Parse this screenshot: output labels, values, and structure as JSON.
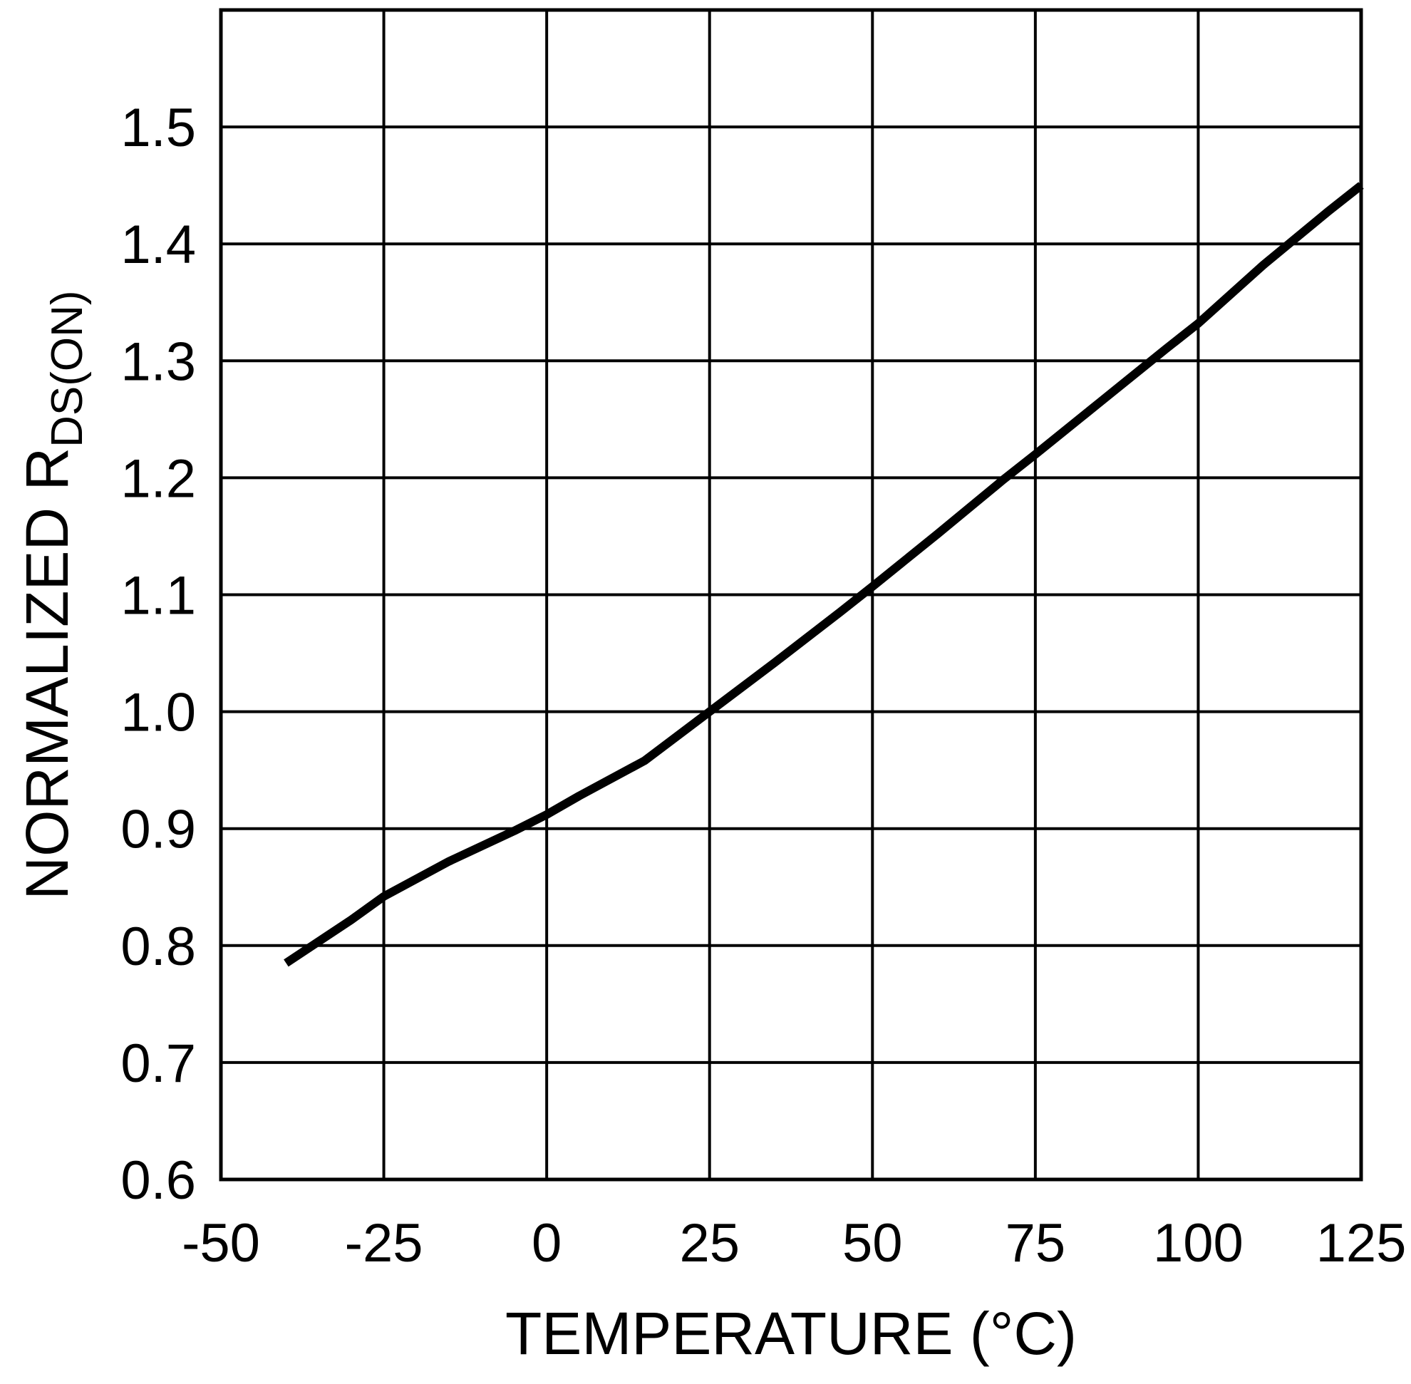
{
  "chart_data": {
    "type": "line",
    "title": "",
    "xlabel": "TEMPERATURE (°C)",
    "ylabel_main": "NORMALIZED R",
    "ylabel_sub": "DS(ON)",
    "xlim": [
      -50,
      125
    ],
    "ylim": [
      0.6,
      1.6
    ],
    "x_ticks": [
      -50,
      -25,
      0,
      25,
      50,
      75,
      100,
      125
    ],
    "y_ticks": [
      0.6,
      0.7,
      0.8,
      0.9,
      1.0,
      1.1,
      1.2,
      1.3,
      1.4,
      1.5
    ],
    "y_gridlines": [
      0.6,
      0.7,
      0.8,
      0.9,
      1.0,
      1.1,
      1.2,
      1.3,
      1.4,
      1.5,
      1.6
    ],
    "grid": true,
    "legend": "none",
    "colors": {
      "line": "#000000",
      "grid": "#000000",
      "background": "#ffffff"
    },
    "series": [
      {
        "name": "normalized-rdson-vs-temperature",
        "x": [
          -40,
          -30,
          -25,
          -15,
          -5,
          0,
          5,
          15,
          25,
          35,
          45,
          50,
          60,
          70,
          75,
          85,
          95,
          100,
          110,
          120,
          125
        ],
        "y": [
          0.785,
          0.822,
          0.842,
          0.872,
          0.898,
          0.912,
          0.928,
          0.958,
          1.0,
          1.042,
          1.085,
          1.107,
          1.152,
          1.198,
          1.22,
          1.265,
          1.31,
          1.332,
          1.382,
          1.428,
          1.45
        ]
      }
    ]
  }
}
